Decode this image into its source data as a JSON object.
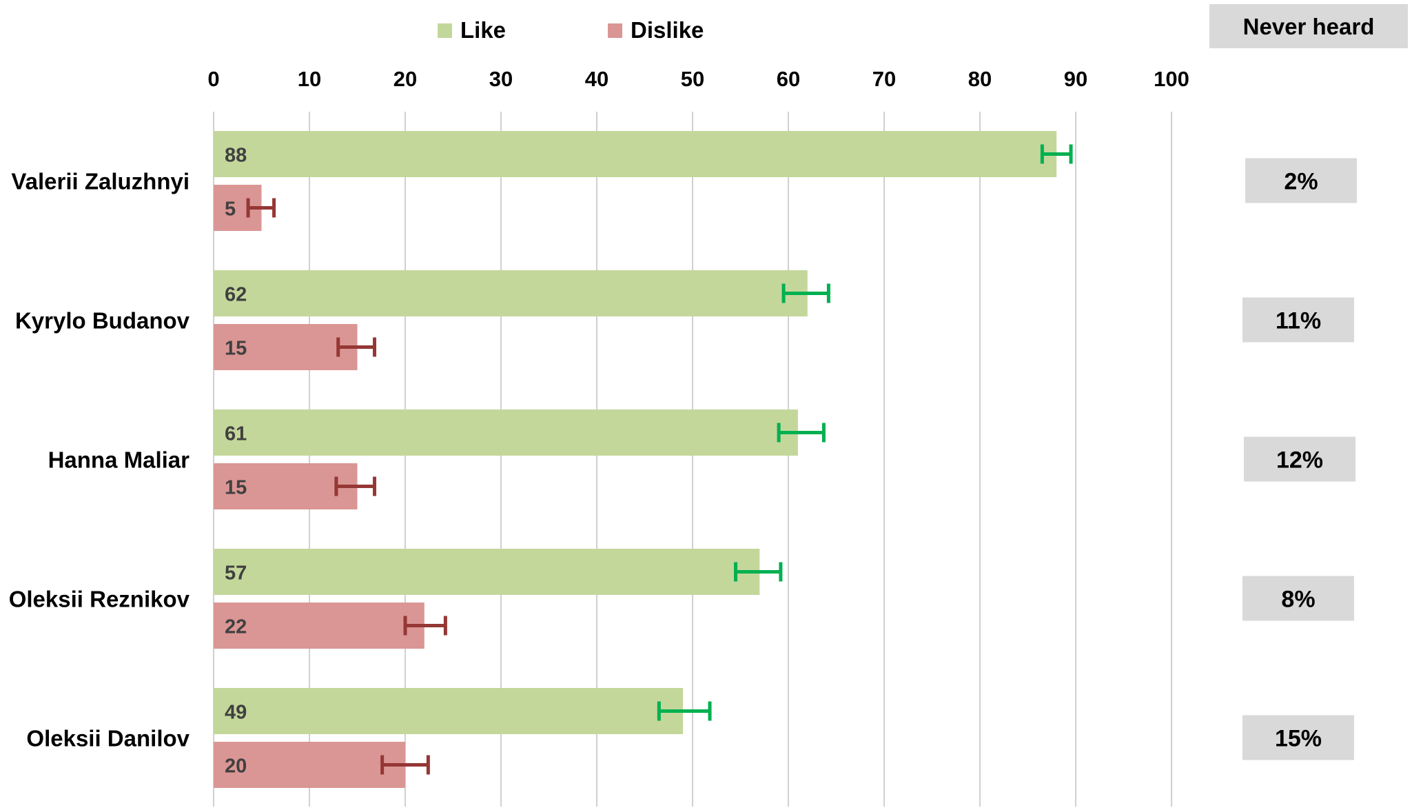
{
  "chart_data": {
    "type": "bar",
    "orientation": "horizontal",
    "title": "",
    "xlabel": "",
    "ylabel": "",
    "xlim": [
      0,
      100
    ],
    "x_ticks": [
      0,
      10,
      20,
      30,
      40,
      50,
      60,
      70,
      80,
      90,
      100
    ],
    "x_axis_position": "top",
    "grid": "vertical",
    "legend": {
      "placement": "top-center",
      "entries": [
        {
          "label": "Like",
          "color": "#c4d79b"
        },
        {
          "label": "Dislike",
          "color": "#da9694"
        }
      ]
    },
    "categories": [
      "Valerii Zaluzhnyi",
      "Kyrylo Budanov",
      "Hanna Maliar",
      "Oleksii Reznikov",
      "Oleksii Danilov"
    ],
    "series": [
      {
        "name": "Like",
        "color": "#c4d79b",
        "error_bar_color": "#00b050",
        "values": [
          88,
          62,
          61,
          57,
          49
        ],
        "labels": [
          "88",
          "62",
          "61",
          "57",
          "49"
        ],
        "error_low": [
          86.5,
          59.5,
          59,
          54.5,
          46.5
        ],
        "error_high": [
          89.5,
          64.2,
          63.7,
          59.2,
          51.8
        ]
      },
      {
        "name": "Dislike",
        "color": "#da9694",
        "error_bar_color": "#953735",
        "values": [
          5,
          15,
          15,
          22,
          20
        ],
        "labels": [
          "5",
          "15",
          "15",
          "22",
          "20"
        ],
        "error_low": [
          3.6,
          13,
          12.8,
          20,
          17.6
        ],
        "error_high": [
          6.3,
          16.8,
          16.8,
          24.2,
          22.4
        ]
      }
    ],
    "side_table": {
      "header": "Never heard",
      "values": [
        "2%",
        "11%",
        "12%",
        "8%",
        "15%"
      ],
      "box_color": "#d9d9d9"
    }
  }
}
